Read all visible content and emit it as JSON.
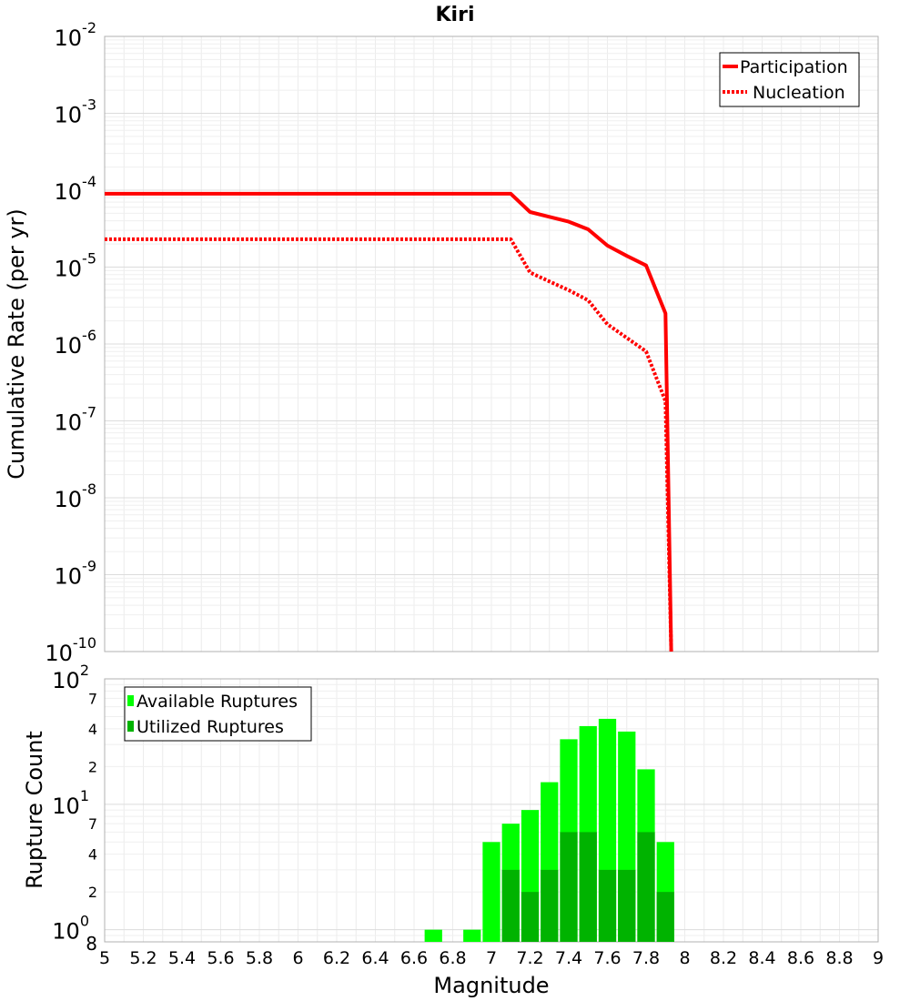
{
  "chart_data": [
    {
      "type": "line",
      "title": "Kiri",
      "xlabel": "",
      "ylabel": "Cumulative Rate (per yr)",
      "yscale": "log",
      "xlim": [
        5,
        9
      ],
      "ylim": [
        1e-10,
        0.01
      ],
      "y_ticks": [
        {
          "base": "10",
          "exp": "-10",
          "value": 1e-10
        },
        {
          "base": "10",
          "exp": "-9",
          "value": 1e-09
        },
        {
          "base": "10",
          "exp": "-8",
          "value": 1e-08
        },
        {
          "base": "10",
          "exp": "-7",
          "value": 1e-07
        },
        {
          "base": "10",
          "exp": "-6",
          "value": 1e-06
        },
        {
          "base": "10",
          "exp": "-5",
          "value": 1e-05
        },
        {
          "base": "10",
          "exp": "-4",
          "value": 0.0001
        },
        {
          "base": "10",
          "exp": "-3",
          "value": 0.001
        },
        {
          "base": "10",
          "exp": "-2",
          "value": 0.01
        }
      ],
      "series": [
        {
          "name": "Participation",
          "color": "#ff0000",
          "style": "solid",
          "x": [
            5.0,
            7.1,
            7.2,
            7.3,
            7.4,
            7.5,
            7.6,
            7.7,
            7.8,
            7.9,
            7.93
          ],
          "y": [
            9e-05,
            9e-05,
            5.2e-05,
            4.5e-05,
            3.9e-05,
            3.1e-05,
            1.9e-05,
            1.4e-05,
            1.05e-05,
            2.5e-06,
            1e-10
          ]
        },
        {
          "name": "Nucleation",
          "color": "#ff0000",
          "style": "dotted",
          "x": [
            5.0,
            7.1,
            7.2,
            7.3,
            7.4,
            7.5,
            7.6,
            7.7,
            7.8,
            7.9,
            7.93
          ],
          "y": [
            2.3e-05,
            2.3e-05,
            8.5e-06,
            6.5e-06,
            5e-06,
            3.7e-06,
            1.8e-06,
            1.2e-06,
            8e-07,
            1.8e-07,
            1e-10
          ]
        }
      ]
    },
    {
      "type": "bar",
      "xlabel": "Magnitude",
      "ylabel": "Rupture Count",
      "yscale": "log",
      "xlim": [
        5,
        9
      ],
      "ylim": [
        0.8,
        100
      ],
      "x_tick_labels": [
        "5",
        "5.2",
        "5.4",
        "5.6",
        "5.8",
        "6",
        "6.2",
        "6.4",
        "6.6",
        "6.8",
        "7",
        "7.2",
        "7.4",
        "7.6",
        "7.8",
        "8",
        "8.2",
        "8.4",
        "8.6",
        "8.8",
        "9"
      ],
      "y_major_ticks": [
        {
          "base": "10",
          "exp": "0",
          "value": 1
        },
        {
          "base": "10",
          "exp": "1",
          "value": 10
        },
        {
          "base": "10",
          "exp": "2",
          "value": 100
        }
      ],
      "y_minor_labels": [
        {
          "label": "8",
          "value": 0.8
        },
        {
          "label": "2",
          "value": 2
        },
        {
          "label": "4",
          "value": 4
        },
        {
          "label": "7",
          "value": 7
        },
        {
          "label": "2",
          "value": 20
        },
        {
          "label": "4",
          "value": 40
        },
        {
          "label": "7",
          "value": 70
        }
      ],
      "bin_centers": [
        6.7,
        6.8,
        6.9,
        7.0,
        7.1,
        7.2,
        7.3,
        7.4,
        7.5,
        7.6,
        7.7,
        7.8,
        7.9
      ],
      "series": [
        {
          "name": "Available Ruptures",
          "color": "#00ff00",
          "values": [
            1,
            0,
            1,
            5,
            7,
            9,
            15,
            33,
            42,
            48,
            38,
            19,
            5
          ]
        },
        {
          "name": "Utilized Ruptures",
          "color": "#00b300",
          "values": [
            0,
            0,
            0,
            0,
            3,
            2,
            3,
            6,
            6,
            3,
            3,
            6,
            2
          ]
        }
      ]
    }
  ]
}
